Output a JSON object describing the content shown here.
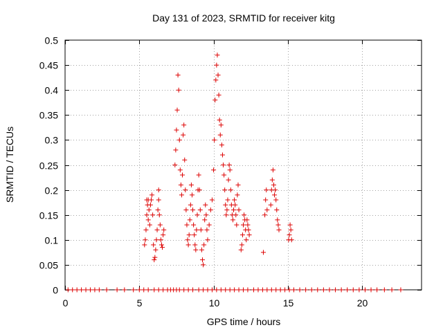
{
  "chart_data": {
    "type": "scatter",
    "title": "Day 131 of 2023, SRMTID for receiver kitg",
    "xlabel": "GPS time / hours",
    "ylabel": "SRMTID / TECUs",
    "xlim": [
      0,
      24
    ],
    "ylim": [
      0,
      0.5
    ],
    "xticks": [
      0,
      5,
      10,
      15,
      20
    ],
    "xtick_labels": [
      "0",
      "5",
      "10",
      "15",
      "20"
    ],
    "yticks": [
      0,
      0.05,
      0.1,
      0.15,
      0.2,
      0.25,
      0.3,
      0.35,
      0.4,
      0.45,
      0.5
    ],
    "ytick_labels": [
      "0",
      "0.05",
      "0.1",
      "0.15",
      "0.2",
      "0.25",
      "0.3",
      "0.35",
      "0.4",
      "0.45",
      "0.5"
    ],
    "grid": true,
    "legend": "none",
    "marker": "plus",
    "color": "#dd0000",
    "series": [
      {
        "x": [
          0.2,
          0.5,
          0.8,
          1.1,
          1.4,
          1.7,
          2.0,
          2.3,
          2.8,
          3.5,
          4.0,
          4.6,
          5.0,
          5.3,
          5.6,
          6.0,
          6.3,
          6.6,
          6.9,
          7.1,
          7.3,
          7.5,
          7.7,
          8.0,
          8.3,
          8.6,
          9.0,
          9.3,
          9.6,
          9.9,
          10.2,
          10.5,
          10.8,
          11.1,
          11.4,
          11.7,
          12.0,
          12.3,
          12.7,
          13.0,
          13.3,
          13.6,
          13.9,
          14.2,
          14.5,
          14.8,
          15.1,
          15.4,
          15.8,
          16.2,
          16.6,
          17.0,
          17.4,
          17.8,
          18.2,
          18.6,
          19.0,
          19.4,
          19.8,
          20.2,
          20.6,
          21.0,
          21.5,
          22.0,
          22.6
        ],
        "y": [
          0,
          0,
          0,
          0,
          0,
          0,
          0,
          0,
          0,
          0,
          0,
          0,
          0,
          0,
          0,
          0,
          0,
          0,
          0,
          0,
          0,
          0,
          0,
          0,
          0,
          0,
          0,
          0,
          0,
          0,
          0,
          0,
          0,
          0,
          0,
          0,
          0,
          0,
          0,
          0,
          0,
          0,
          0,
          0,
          0,
          0,
          0,
          0,
          0,
          0,
          0,
          0,
          0,
          0,
          0,
          0,
          0,
          0,
          0,
          0,
          0,
          0,
          0,
          0,
          0
        ]
      },
      {
        "x": [
          5.35,
          5.4,
          5.45,
          5.5,
          5.5,
          5.55,
          5.6,
          5.6,
          5.65,
          5.7,
          5.75,
          5.8,
          5.85,
          5.9,
          5.95,
          6.0,
          6.05,
          6.1,
          6.15,
          6.2,
          6.25,
          6.3,
          6.3,
          6.35,
          6.4,
          6.45,
          6.5,
          6.55,
          6.6,
          6.65
        ],
        "y": [
          0.09,
          0.1,
          0.12,
          0.15,
          0.18,
          0.17,
          0.14,
          0.18,
          0.16,
          0.13,
          0.17,
          0.18,
          0.19,
          0.15,
          0.09,
          0.06,
          0.065,
          0.08,
          0.1,
          0.12,
          0.16,
          0.2,
          0.18,
          0.15,
          0.13,
          0.1,
          0.09,
          0.085,
          0.11,
          0.12
        ]
      },
      {
        "x": [
          7.4,
          7.45,
          7.5,
          7.55,
          7.6,
          7.65,
          7.7,
          7.75,
          7.8,
          7.85,
          7.9,
          7.95,
          8.0,
          8.05,
          8.1,
          8.15,
          8.2,
          8.25,
          8.3,
          8.35,
          8.4,
          8.45,
          8.5,
          8.55,
          8.6,
          8.65,
          8.7,
          8.75,
          8.8,
          8.85,
          8.9,
          8.95,
          9.0,
          9.05,
          9.1,
          9.15,
          9.2,
          9.25,
          9.3,
          9.35,
          9.4,
          9.45,
          9.5,
          9.55,
          9.6,
          9.7,
          9.8,
          9.9
        ],
        "y": [
          0.25,
          0.28,
          0.32,
          0.36,
          0.43,
          0.4,
          0.3,
          0.24,
          0.21,
          0.19,
          0.23,
          0.31,
          0.33,
          0.26,
          0.2,
          0.16,
          0.13,
          0.1,
          0.09,
          0.11,
          0.14,
          0.17,
          0.21,
          0.19,
          0.16,
          0.13,
          0.11,
          0.09,
          0.08,
          0.12,
          0.15,
          0.2,
          0.23,
          0.2,
          0.16,
          0.12,
          0.08,
          0.06,
          0.05,
          0.09,
          0.14,
          0.17,
          0.15,
          0.12,
          0.1,
          0.13,
          0.16,
          0.18
        ]
      },
      {
        "x": [
          10.0,
          10.05,
          10.1,
          10.15,
          10.2,
          10.25,
          10.3,
          10.35,
          10.4,
          10.45,
          10.5,
          10.55,
          10.6,
          10.65,
          10.7,
          10.75,
          10.8,
          10.85,
          10.9,
          10.95,
          11.0,
          11.05,
          11.1,
          11.15,
          11.2,
          11.25,
          11.3,
          11.35,
          11.4,
          11.45,
          11.5,
          11.55,
          11.6,
          11.65,
          11.7
        ],
        "y": [
          0.24,
          0.3,
          0.38,
          0.42,
          0.45,
          0.47,
          0.43,
          0.39,
          0.34,
          0.31,
          0.33,
          0.29,
          0.27,
          0.25,
          0.23,
          0.2,
          0.17,
          0.15,
          0.16,
          0.18,
          0.22,
          0.25,
          0.24,
          0.2,
          0.17,
          0.15,
          0.14,
          0.16,
          0.18,
          0.17,
          0.15,
          0.13,
          0.19,
          0.21,
          0.16
        ]
      },
      {
        "x": [
          11.85,
          11.9,
          11.95,
          12.0,
          12.05,
          12.1,
          12.15,
          12.2,
          12.25,
          12.3,
          12.35,
          12.4
        ],
        "y": [
          0.08,
          0.09,
          0.11,
          0.13,
          0.15,
          0.14,
          0.12,
          0.1,
          0.14,
          0.13,
          0.12,
          0.11
        ]
      },
      {
        "x": [
          13.35,
          13.45,
          13.5,
          13.55,
          13.6
        ],
        "y": [
          0.075,
          0.15,
          0.18,
          0.2,
          0.16
        ]
      },
      {
        "x": [
          13.85,
          13.9,
          13.95,
          14.0,
          14.05,
          14.1,
          14.15,
          14.2,
          14.25,
          14.3,
          14.35,
          14.4
        ],
        "y": [
          0.17,
          0.2,
          0.22,
          0.24,
          0.21,
          0.19,
          0.2,
          0.18,
          0.16,
          0.14,
          0.13,
          0.12
        ]
      },
      {
        "x": [
          15.05,
          15.1,
          15.15,
          15.2,
          15.25
        ],
        "y": [
          0.1,
          0.11,
          0.13,
          0.12,
          0.1
        ]
      }
    ]
  }
}
